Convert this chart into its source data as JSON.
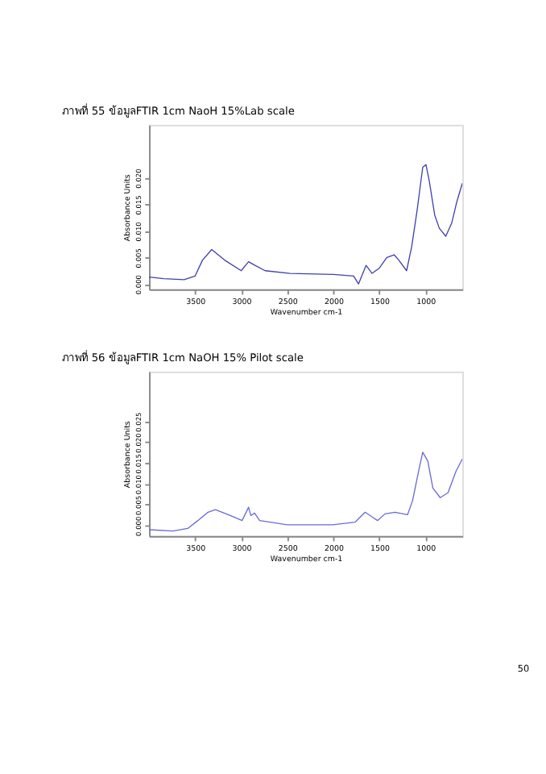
{
  "chart_data": [
    {
      "type": "line",
      "title": "ภาพที่ 55 ข้อมูลFTIR 1cm NaoH 15%Lab scale",
      "xlabel": "Wavenumber cm-1",
      "ylabel": "Absorbance Units",
      "x": [
        4000,
        3840,
        3620,
        3500,
        3420,
        3320,
        3180,
        3000,
        2920,
        2850,
        2740,
        2470,
        2000,
        1780,
        1727,
        1645,
        1580,
        1500,
        1420,
        1340,
        1290,
        1205,
        1150,
        1090,
        1030,
        995,
        960,
        900,
        850,
        780,
        715,
        660,
        600
      ],
      "series": [
        {
          "color": "#4040b0",
          "values": [
            0.0013,
            0.001,
            0.0008,
            0.0015,
            0.0045,
            0.0065,
            0.0045,
            0.0025,
            0.0042,
            0.0035,
            0.0025,
            0.002,
            0.0018,
            0.0015,
            0.0,
            0.0035,
            0.002,
            0.003,
            0.005,
            0.0055,
            0.0045,
            0.0025,
            0.007,
            0.014,
            0.022,
            0.0225,
            0.0195,
            0.013,
            0.0105,
            0.009,
            0.0115,
            0.0155,
            0.019
          ]
        }
      ],
      "xlim": [
        4000,
        600
      ],
      "xticks": [
        3500,
        3000,
        2500,
        2000,
        1500,
        1000
      ],
      "ylim": [
        -0.001,
        0.03
      ],
      "yticks": [
        {
          "value": 0,
          "label": "0.000"
        },
        {
          "value": 0.005,
          "label": "0.005"
        },
        {
          "value": 0.01,
          "label": "0.010"
        },
        {
          "value": 0.015,
          "label": "0.015"
        },
        {
          "value": 0.02,
          "label": "0.020"
        }
      ],
      "grid": false
    },
    {
      "type": "line",
      "title": "ภาพที่ 56 ข้อมูลFTIR 1cm NaOH 15% Pilot scale",
      "xlabel": "Wavenumber cm-1",
      "ylabel": "Absorbance Units",
      "x": [
        4000,
        3740,
        3580,
        3470,
        3360,
        3280,
        3140,
        2990,
        2920,
        2895,
        2855,
        2800,
        2500,
        2005,
        1765,
        1655,
        1575,
        1520,
        1440,
        1330,
        1195,
        1140,
        1075,
        1030,
        975,
        920,
        840,
        755,
        670,
        600
      ],
      "series": [
        {
          "color": "#6a6ad8",
          "values": [
            -0.001,
            -0.0013,
            -0.0007,
            0.0012,
            0.0032,
            0.0038,
            0.0026,
            0.0012,
            0.0044,
            0.0024,
            0.003,
            0.0012,
            0.0002,
            0.0002,
            0.0008,
            0.0032,
            0.002,
            0.0012,
            0.0028,
            0.0032,
            0.0026,
            0.006,
            0.013,
            0.0176,
            0.0155,
            0.009,
            0.0067,
            0.0079,
            0.013,
            0.016
          ]
        }
      ],
      "xlim": [
        4000,
        600
      ],
      "xticks": [
        3500,
        3000,
        2500,
        2000,
        1500,
        1000
      ],
      "ylim": [
        -0.0025,
        0.037
      ],
      "yticks": [
        {
          "value": 0,
          "label": "0.000"
        },
        {
          "value": 0.005,
          "label": "0.005"
        },
        {
          "value": 0.01,
          "label": "0.010"
        },
        {
          "value": 0.015,
          "label": "0.015"
        },
        {
          "value": 0.02,
          "label": "0.020"
        },
        {
          "value": 0.025,
          "label": "0.025"
        }
      ],
      "grid": false,
      "annotations": [
        "50"
      ]
    }
  ]
}
